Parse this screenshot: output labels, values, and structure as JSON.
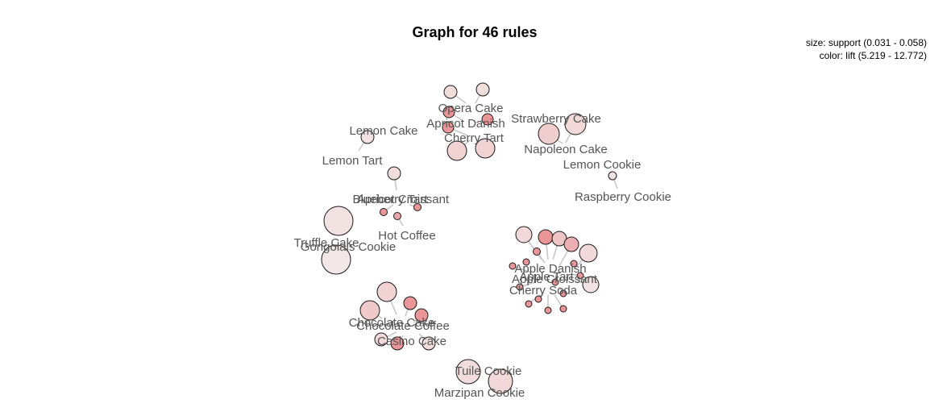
{
  "graph": {
    "title": "Graph for 46 rules",
    "legend": {
      "size": "size: support (0.031 - 0.058)",
      "color": "color: lift (5.219 - 12.772)"
    },
    "colors": {
      "edge": "#c8c8c8",
      "label": "#555555",
      "lift_low": "#f4ecec",
      "lift_high": "#e8878a"
    },
    "items": [
      {
        "id": "opera-cake",
        "label": "Opera Cake"
      },
      {
        "id": "apricot-danish",
        "label": "Apricot Danish"
      },
      {
        "id": "cherry-tart",
        "label": "Cherry Tart"
      },
      {
        "id": "strawberry-cake",
        "label": "Strawberry Cake"
      },
      {
        "id": "napoleon-cake",
        "label": "Napoleon Cake"
      },
      {
        "id": "lemon-cake",
        "label": "Lemon Cake"
      },
      {
        "id": "lemon-tart",
        "label": "Lemon Tart"
      },
      {
        "id": "lemon-cookie",
        "label": "Lemon Cookie"
      },
      {
        "id": "raspberry-cookie",
        "label": "Raspberry Cookie"
      },
      {
        "id": "blueberry-tart",
        "label": "Blueberry Tart"
      },
      {
        "id": "apricot-croissant",
        "label": "Apricot Croissant"
      },
      {
        "id": "hot-coffee",
        "label": "Hot Coffee"
      },
      {
        "id": "truffle-cake",
        "label": "Truffle Cake"
      },
      {
        "id": "gongolais-cookie",
        "label": "Gongolais Cookie"
      },
      {
        "id": "apple-danish",
        "label": "Apple Danish"
      },
      {
        "id": "apple-tart",
        "label": "Apple Tart"
      },
      {
        "id": "apple-croissant",
        "label": "Apple Croissant"
      },
      {
        "id": "cherry-soda",
        "label": "Cherry Soda"
      },
      {
        "id": "chocolate-cake",
        "label": "Chocolate Cake"
      },
      {
        "id": "chocolate-coffee",
        "label": "Chocolate Coffee"
      },
      {
        "id": "casino-cake",
        "label": "Casino Cake"
      },
      {
        "id": "tuile-cookie",
        "label": "Tuile Cookie"
      },
      {
        "id": "marzipan-cookie",
        "label": "Marzipan Cookie"
      }
    ],
    "rule_count": 46
  }
}
